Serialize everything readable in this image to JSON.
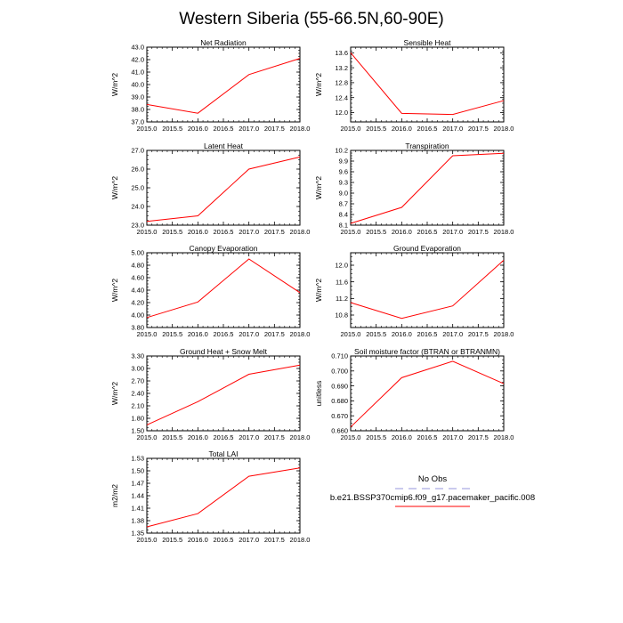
{
  "title": "Western Siberia (55-66.5N,60-90E)",
  "colors": {
    "model": "#ff0000",
    "obs": "#b9b9e8",
    "axis": "#000000"
  },
  "legend": {
    "obs_label": "No Obs",
    "model_label": "b.e21.BSSP370cmip6.f09_g17.pacemaker_pacific.008"
  },
  "chart_data": [
    {
      "type": "line",
      "title": "Net Radiation",
      "ylabel": "W/m^2",
      "x": [
        2015,
        2016,
        2017,
        2018
      ],
      "y": [
        38.4,
        37.7,
        40.8,
        42.1
      ],
      "xlim": [
        2015,
        2018
      ],
      "ylim": [
        37,
        43
      ],
      "xticks": [
        "2015.0",
        "2015.5",
        "2016.0",
        "2016.5",
        "2017.0",
        "2017.5",
        "2018.0"
      ],
      "yticks": [
        "37.0",
        "38.0",
        "39.0",
        "40.0",
        "41.0",
        "42.0",
        "43.0"
      ]
    },
    {
      "type": "line",
      "title": "Sensible Heat",
      "ylabel": "W/m^2",
      "x": [
        2015,
        2016,
        2017,
        2018
      ],
      "y": [
        13.6,
        11.98,
        11.95,
        12.32
      ],
      "xlim": [
        2015,
        2018
      ],
      "ylim": [
        11.75,
        13.75
      ],
      "xticks": [
        "2015.0",
        "2015.5",
        "2016.0",
        "2016.5",
        "2017.0",
        "2017.5",
        "2018.0"
      ],
      "yticks": [
        "12.0",
        "12.4",
        "12.8",
        "13.2",
        "13.6"
      ]
    },
    {
      "type": "line",
      "title": "Latent Heat",
      "ylabel": "W/m^2",
      "x": [
        2015,
        2016,
        2017,
        2018
      ],
      "y": [
        23.2,
        23.5,
        26.0,
        26.65
      ],
      "xlim": [
        2015,
        2018
      ],
      "ylim": [
        23,
        27
      ],
      "xticks": [
        "2015.0",
        "2015.5",
        "2016.0",
        "2016.5",
        "2017.0",
        "2017.5",
        "2018.0"
      ],
      "yticks": [
        "23.0",
        "24.0",
        "25.0",
        "26.0",
        "27.0"
      ]
    },
    {
      "type": "line",
      "title": "Transpiration",
      "ylabel": "W/m^2",
      "x": [
        2015,
        2016,
        2017,
        2018
      ],
      "y": [
        8.15,
        8.6,
        10.05,
        10.12
      ],
      "xlim": [
        2015,
        2018
      ],
      "ylim": [
        8.1,
        10.2
      ],
      "xticks": [
        "2015.0",
        "2015.5",
        "2016.0",
        "2016.5",
        "2017.0",
        "2017.5",
        "2018.0"
      ],
      "yticks": [
        "8.1",
        "8.4",
        "8.7",
        "9.0",
        "9.3",
        "9.6",
        "9.9",
        "10.2"
      ]
    },
    {
      "type": "line",
      "title": "Canopy Evaporation",
      "ylabel": "W/m^2",
      "x": [
        2015,
        2016,
        2017,
        2018
      ],
      "y": [
        3.96,
        4.21,
        4.9,
        4.36
      ],
      "xlim": [
        2015,
        2018
      ],
      "ylim": [
        3.8,
        5.0
      ],
      "xticks": [
        "2015.0",
        "2015.5",
        "2016.0",
        "2016.5",
        "2017.0",
        "2017.5",
        "2018.0"
      ],
      "yticks": [
        "3.80",
        "4.00",
        "4.20",
        "4.40",
        "4.60",
        "4.80",
        "5.00"
      ]
    },
    {
      "type": "line",
      "title": "Ground Evaporation",
      "ylabel": "W/m^2",
      "x": [
        2015,
        2016,
        2017,
        2018
      ],
      "y": [
        11.1,
        10.72,
        11.02,
        12.12
      ],
      "xlim": [
        2015,
        2018
      ],
      "ylim": [
        10.5,
        12.3
      ],
      "xticks": [
        "2015.0",
        "2015.5",
        "2016.0",
        "2016.5",
        "2017.0",
        "2017.5",
        "2018.0"
      ],
      "yticks": [
        "10.8",
        "11.2",
        "11.6",
        "12.0"
      ]
    },
    {
      "type": "line",
      "title": "Ground Heat + Snow Melt",
      "ylabel": "W/m^2",
      "x": [
        2015,
        2016,
        2017,
        2018
      ],
      "y": [
        1.64,
        2.2,
        2.86,
        3.08
      ],
      "xlim": [
        2015,
        2018
      ],
      "ylim": [
        1.5,
        3.3
      ],
      "xticks": [
        "2015.0",
        "2015.5",
        "2016.0",
        "2016.5",
        "2017.0",
        "2017.5",
        "2018.0"
      ],
      "yticks": [
        "1.50",
        "1.80",
        "2.10",
        "2.40",
        "2.70",
        "3.00",
        "3.30"
      ]
    },
    {
      "type": "line",
      "title": "Soil moisture factor (BTRAN or BTRANMN)",
      "ylabel": "unitless",
      "x": [
        2015,
        2016,
        2017,
        2018
      ],
      "y": [
        0.6625,
        0.6955,
        0.7065,
        0.6915
      ],
      "xlim": [
        2015,
        2018
      ],
      "ylim": [
        0.66,
        0.71
      ],
      "xticks": [
        "2015.0",
        "2015.5",
        "2016.0",
        "2016.5",
        "2017.0",
        "2017.5",
        "2018.0"
      ],
      "yticks": [
        "0.660",
        "0.670",
        "0.680",
        "0.690",
        "0.700",
        "0.710"
      ]
    },
    {
      "type": "line",
      "title": "Total LAI",
      "ylabel": "m2/m2",
      "x": [
        2015,
        2016,
        2017,
        2018
      ],
      "y": [
        1.365,
        1.397,
        1.487,
        1.507
      ],
      "xlim": [
        2015,
        2018
      ],
      "ylim": [
        1.35,
        1.53
      ],
      "xticks": [
        "2015.0",
        "2015.5",
        "2016.0",
        "2016.5",
        "2017.0",
        "2017.5",
        "2018.0"
      ],
      "yticks": [
        "1.35",
        "1.38",
        "1.41",
        "1.44",
        "1.47",
        "1.50",
        "1.53"
      ]
    }
  ]
}
